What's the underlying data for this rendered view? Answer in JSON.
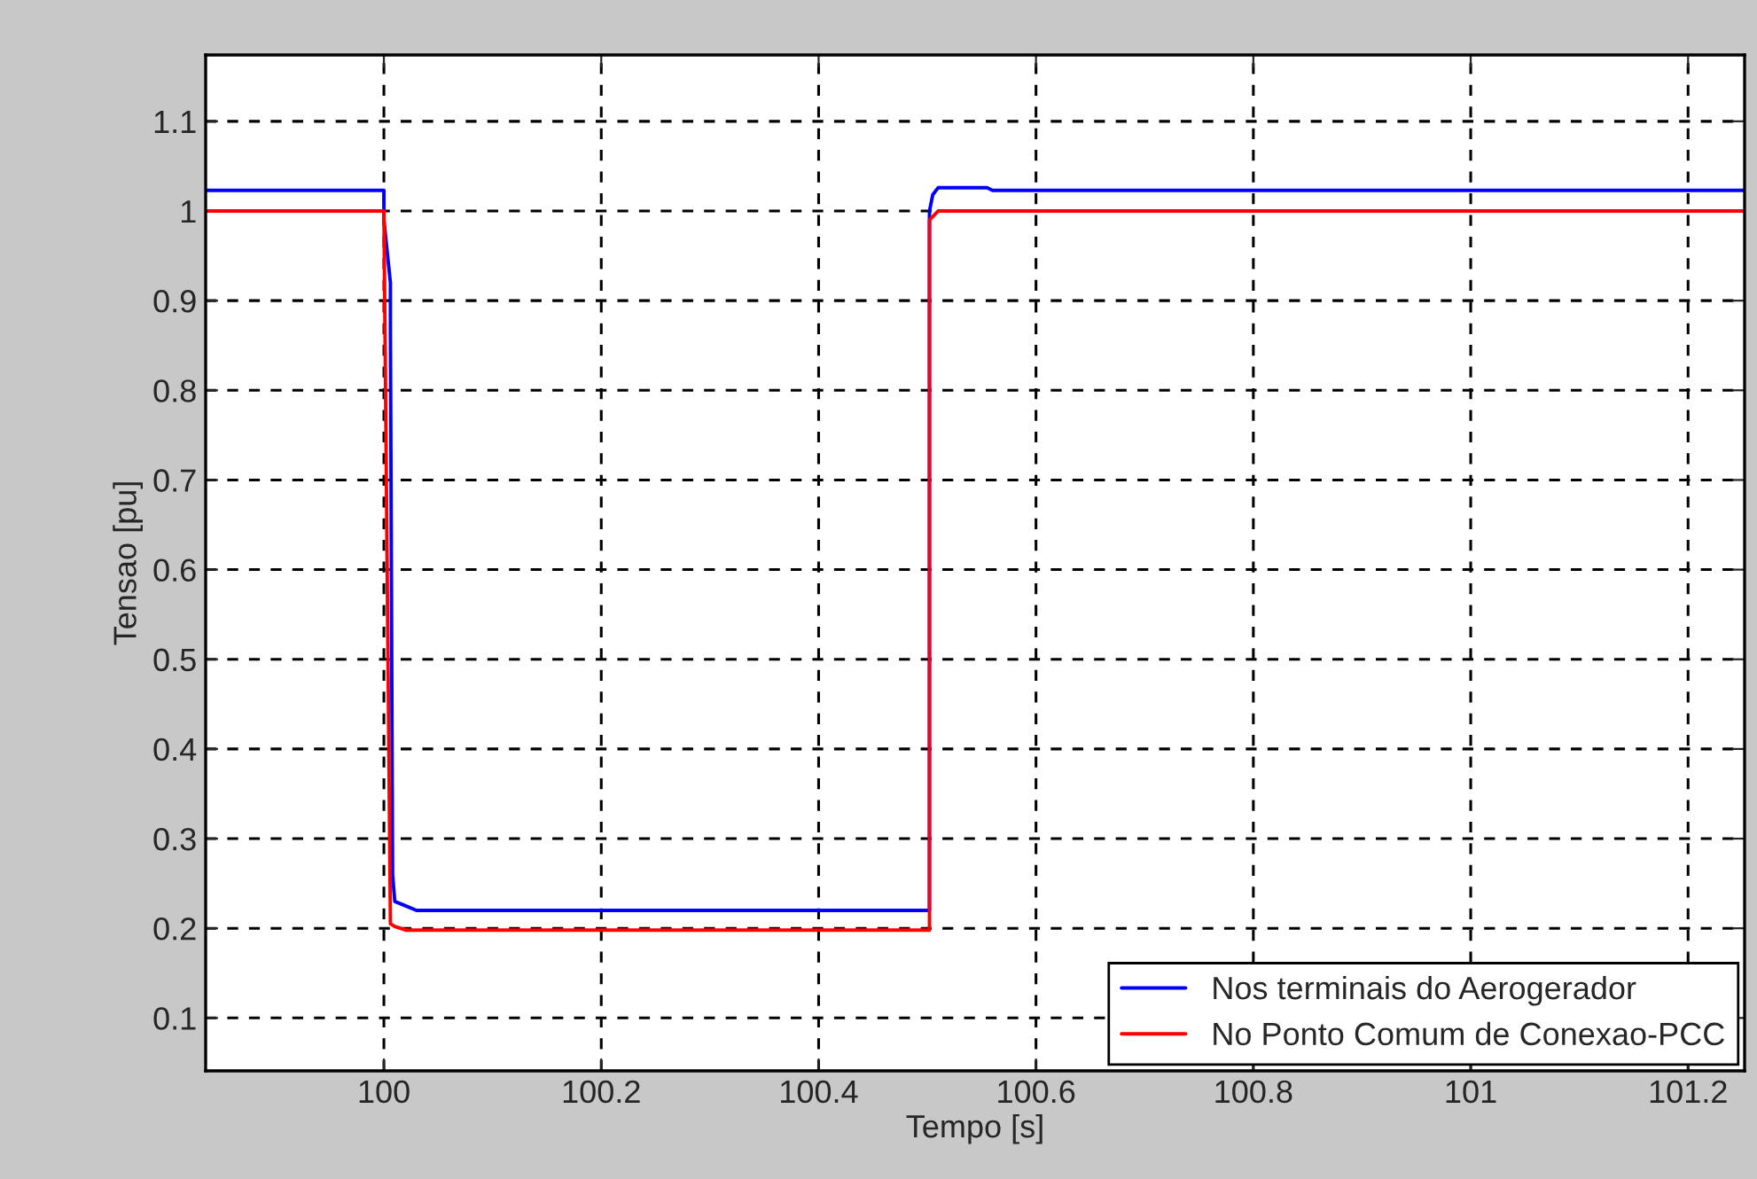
{
  "chart_data": {
    "type": "line",
    "xlabel": "Tempo [s]",
    "ylabel": "Tensao [pu]",
    "xlim": [
      99.836,
      101.252
    ],
    "xticks": [
      100,
      100.2,
      100.4,
      100.6,
      100.8,
      101,
      101.2
    ],
    "ylim": [
      0.041,
      1.174
    ],
    "yticks": [
      0.1,
      0.2,
      0.3,
      0.4,
      0.5,
      0.6,
      0.7,
      0.8,
      0.9,
      1,
      1.1
    ],
    "grid": true,
    "legend": "bottom right",
    "line_style": "solid",
    "marker": "none",
    "series": [
      {
        "name": "Nos terminais do Aerogerador",
        "color": "#0000ff",
        "x": [
          99.836,
          100.0,
          100.0,
          100.006,
          100.006,
          100.008,
          100.01,
          100.02,
          100.03,
          100.502,
          100.502,
          100.505,
          100.51,
          100.555,
          100.56,
          101.252
        ],
        "values": [
          1.023,
          1.023,
          0.99,
          0.92,
          0.87,
          0.26,
          0.23,
          0.225,
          0.22,
          0.22,
          1.0,
          1.018,
          1.026,
          1.026,
          1.023,
          1.023
        ]
      },
      {
        "name": "No Ponto Comum de Conexao-PCC",
        "color": "#ff0000",
        "x": [
          99.836,
          100.0,
          100.006,
          100.01,
          100.02,
          100.502,
          100.502,
          100.506,
          100.51,
          101.252
        ],
        "values": [
          1.0,
          1.0,
          0.205,
          0.202,
          0.198,
          0.198,
          0.99,
          0.995,
          1.0,
          1.0
        ]
      }
    ]
  }
}
